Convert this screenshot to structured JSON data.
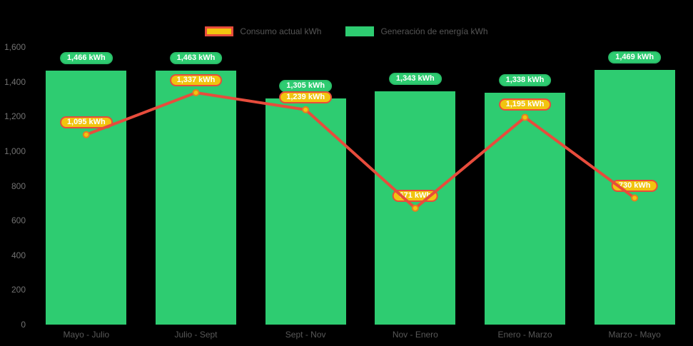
{
  "legend": {
    "items": [
      {
        "label": "Consumo actual kWh",
        "swatch_fill": "#f1c40f",
        "swatch_border": "#e74c3c"
      },
      {
        "label": "Generación de energía kWh",
        "swatch_fill": "#2ecc71"
      }
    ]
  },
  "colors": {
    "background": "#000000",
    "bar": "#2ecc71",
    "line": "#e74c3c",
    "marker_fill": "#f1c40f",
    "marker_border": "#e67e22",
    "bar_label_bg": "#2ecc71",
    "line_label_bg": "#f1c40f",
    "line_label_border": "#e74c3c"
  },
  "chart_data": {
    "type": "bar",
    "categories": [
      "Mayo - Julio",
      "Julio - Sept",
      "Sept - Nov",
      "Nov - Enero",
      "Enero - Marzo",
      "Marzo - Mayo"
    ],
    "series": [
      {
        "name": "Consumo actual kWh",
        "type": "line",
        "values": [
          1095,
          1337,
          1239,
          671,
          1195,
          730
        ],
        "labels": [
          "1,095 kWh",
          "1,337 kWh",
          "1,239 kWh",
          "671 kWh",
          "1,195 kWh",
          "730 kWh"
        ],
        "color": "#e74c3c"
      },
      {
        "name": "Generación de energía kWh",
        "type": "bar",
        "values": [
          1466,
          1463,
          1305,
          1343,
          1338,
          1469
        ],
        "labels": [
          "1,466 kWh",
          "1,463 kWh",
          "1,305 kWh",
          "1,343 kWh",
          "1,338 kWh",
          "1,469 kWh"
        ],
        "color": "#2ecc71"
      }
    ],
    "title": "",
    "xlabel": "",
    "ylabel": "",
    "ylim": [
      0,
      1600
    ],
    "yticks": [
      "0",
      "200",
      "400",
      "600",
      "800",
      "1,000",
      "1,200",
      "1,400",
      "1,600"
    ],
    "ytick_values": [
      0,
      200,
      400,
      600,
      800,
      1000,
      1200,
      1400,
      1600
    ],
    "legend_position": "top",
    "grid": false
  }
}
